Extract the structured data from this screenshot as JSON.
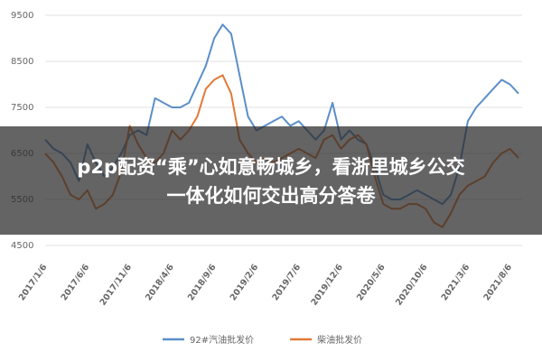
{
  "chart_data": {
    "type": "line",
    "annotations": [
      "p2p配资“乘”心如意畅城乡，看浙里城乡公交",
      "一体化如何交出高分答卷"
    ],
    "categories": [
      "2017/1/6",
      null,
      null,
      null,
      null,
      "2017/6/6",
      null,
      null,
      null,
      null,
      "2017/11/6",
      null,
      null,
      null,
      null,
      "2018/4/6",
      null,
      null,
      null,
      null,
      "2018/9/6",
      null,
      null,
      null,
      null,
      "2019/2/6",
      null,
      null,
      null,
      null,
      "2019/7/6",
      null,
      null,
      null,
      null,
      "2019/12/6",
      null,
      null,
      null,
      null,
      "2020/5/6",
      null,
      null,
      null,
      null,
      "2020/10/6",
      null,
      null,
      null,
      null,
      "2021/3/6",
      null,
      null,
      null,
      null,
      "2021/8/6",
      null
    ],
    "series": [
      {
        "name": "92#汽油批发价",
        "color": "#5b8fc9",
        "values": [
          6800,
          6600,
          6500,
          6300,
          5900,
          6700,
          6300,
          6000,
          6200,
          6500,
          6900,
          7000,
          6900,
          7700,
          7600,
          7500,
          7500,
          7600,
          8000,
          8400,
          9000,
          9300,
          9100,
          8200,
          7300,
          7000,
          7100,
          7200,
          7300,
          7100,
          7200,
          7000,
          6800,
          7000,
          7600,
          6800,
          7000,
          6800,
          6700,
          6200,
          5600,
          5500,
          5500,
          5600,
          5700,
          5600,
          5500,
          5400,
          5600,
          6200,
          7200,
          7500,
          7700,
          7900,
          8100,
          8000,
          7800
        ]
      },
      {
        "name": "柴油批发价",
        "color": "#e07b39",
        "values": [
          6500,
          6300,
          6000,
          5600,
          5500,
          5700,
          5300,
          5400,
          5600,
          6100,
          7100,
          6700,
          6400,
          6300,
          6500,
          7000,
          6800,
          7000,
          7300,
          7900,
          8100,
          8200,
          7800,
          6800,
          6500,
          6300,
          6400,
          6300,
          6400,
          6500,
          6600,
          6500,
          6400,
          6800,
          6900,
          6600,
          6800,
          6900,
          6700,
          6000,
          5400,
          5300,
          5300,
          5400,
          5400,
          5300,
          5000,
          4900,
          5200,
          5600,
          5800,
          5900,
          6000,
          6300,
          6500,
          6600,
          6400
        ]
      }
    ],
    "ylim": [
      4500,
      9500
    ],
    "yticks": [
      4500,
      5500,
      6500,
      7500,
      8500,
      9500
    ],
    "grid": true,
    "legend": "bottom"
  }
}
